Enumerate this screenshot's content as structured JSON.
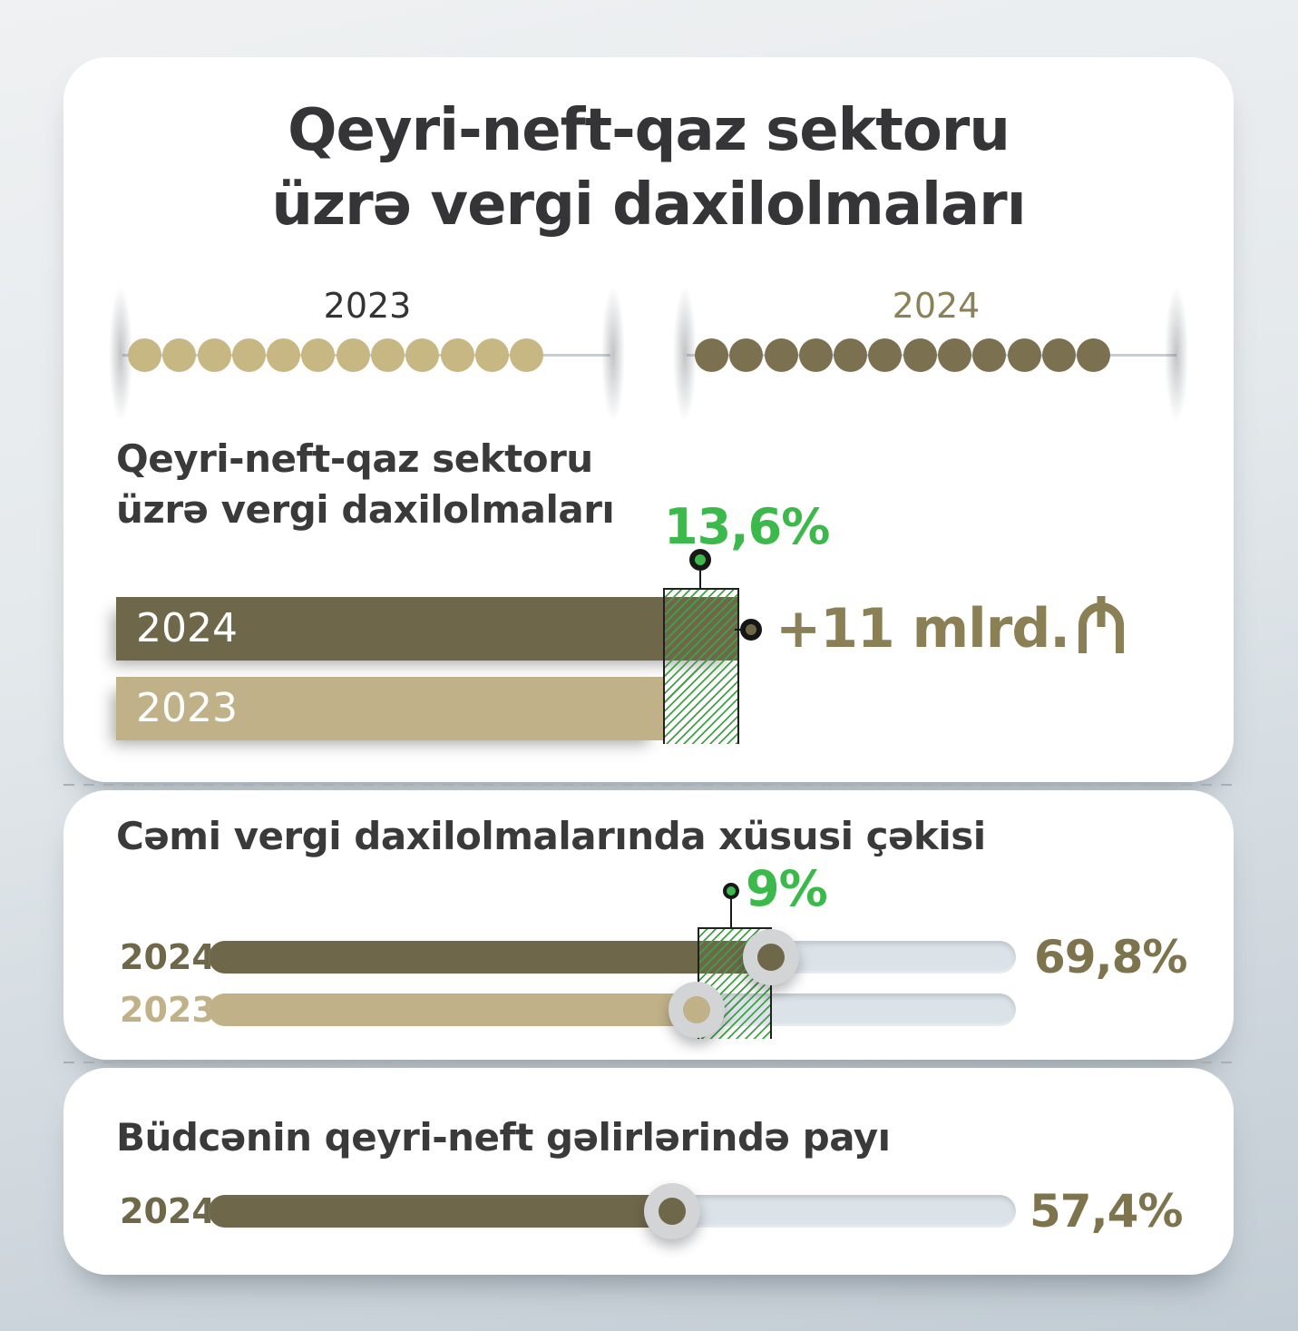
{
  "header": {
    "title_line1": "Qeyri-neft-qaz sektoru",
    "title_line2": "üzrə vergi daxilolmaları"
  },
  "timeline": {
    "left_year": "2023",
    "right_year": "2024",
    "left_dot_count": 12,
    "right_dot_count": 12
  },
  "card1": {
    "subtitle_line1": "Qeyri-neft-qaz sektoru",
    "subtitle_line2": "üzrə vergi daxilolmaları",
    "growth_percent": "13,6%",
    "increase_text": "+11 mlrd.",
    "currency_icon": "manat-sign",
    "bar_2024_label": "2024",
    "bar_2023_label": "2023"
  },
  "card2": {
    "title": "Cəmi vergi daxilolmalarında xüsusi çəkisi",
    "diff_percent": "9%",
    "row_2024_label": "2024",
    "row_2023_label": "2023",
    "value_2024": "69,8%"
  },
  "card3": {
    "title": "Büdcənin qeyri-neft gəlirlərində payı",
    "row_2024_label": "2024",
    "value_2024": "57,4%"
  },
  "colors": {
    "olive_2024": "#6f674a",
    "tan_2023": "#c0b189",
    "accent_green": "#3cb94b",
    "hatch_green": "#43a047",
    "value_text": "#7d744e",
    "delta_text": "#8a7f55",
    "track": "#dce3e8",
    "background_top": "#eff1f2",
    "background_bottom": "#c2ccd4"
  },
  "chart_data": [
    {
      "type": "bar",
      "title": "Qeyri-neft-qaz sektoru üzrə vergi daxilolmaları",
      "orientation": "horizontal",
      "categories": [
        "2024",
        "2023"
      ],
      "values_relative": [
        113.6,
        100
      ],
      "growth_percent": 13.6,
      "increase_label": "+11 mlrd. ₼",
      "note": "absolute axis values not shown; 2024 bar is 13,6% longer than 2023",
      "legend_position": "none",
      "grid": false
    },
    {
      "type": "bar",
      "title": "Cəmi vergi daxilolmalarında xüsusi çəkisi",
      "orientation": "horizontal",
      "categories": [
        "2024",
        "2023"
      ],
      "values": [
        69.8,
        60.8
      ],
      "unit": "%",
      "difference_pp": 9,
      "xlim": [
        0,
        100
      ],
      "note": "2023 value estimated from 69,8% minus 9 p.p.; only 69,8% labeled",
      "grid": false
    },
    {
      "type": "bar",
      "title": "Büdcənin qeyri-neft gəlirlərində payı",
      "orientation": "horizontal",
      "categories": [
        "2024"
      ],
      "values": [
        57.4
      ],
      "unit": "%",
      "xlim": [
        0,
        100
      ],
      "grid": false
    }
  ]
}
